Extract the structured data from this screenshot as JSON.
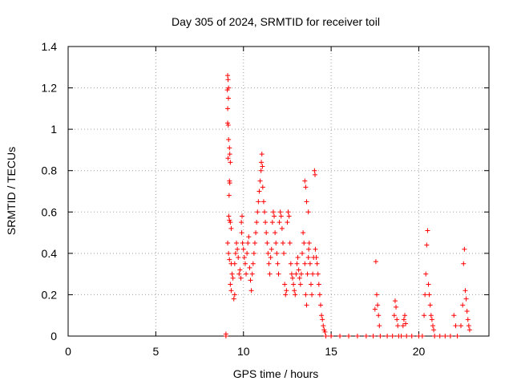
{
  "chart_data": {
    "type": "scatter",
    "title": "Day 305 of 2024, SRMTID for receiver toil",
    "xlabel": "GPS time / hours",
    "ylabel": "SRMTID / TECUs",
    "xlim": [
      0,
      24
    ],
    "ylim": [
      0,
      1.4
    ],
    "xticks": [
      0,
      5,
      10,
      15,
      20
    ],
    "xtick_labels": [
      "0",
      "5",
      "10",
      "15",
      "20"
    ],
    "yticks": [
      0,
      0.2,
      0.4,
      0.6,
      0.8,
      1.0,
      1.2,
      1.4
    ],
    "ytick_labels": [
      "0",
      "0.2",
      "0.4",
      "0.6",
      "0.8",
      "1",
      "1.2",
      "1.4"
    ],
    "grid": true,
    "marker": "+",
    "color": "#ff0000",
    "series": [
      {
        "name": "SRMTID",
        "points": [
          [
            9.0,
            0.0
          ],
          [
            9.0,
            0.01
          ],
          [
            9.1,
            1.26
          ],
          [
            9.12,
            1.24
          ],
          [
            9.15,
            1.2
          ],
          [
            9.08,
            1.19
          ],
          [
            9.14,
            1.15
          ],
          [
            9.1,
            1.1
          ],
          [
            9.1,
            1.03
          ],
          [
            9.13,
            1.02
          ],
          [
            9.15,
            0.95
          ],
          [
            9.2,
            0.91
          ],
          [
            9.22,
            0.88
          ],
          [
            9.12,
            0.86
          ],
          [
            9.25,
            0.84
          ],
          [
            9.2,
            0.75
          ],
          [
            9.22,
            0.74
          ],
          [
            9.18,
            0.68
          ],
          [
            9.16,
            0.58
          ],
          [
            9.2,
            0.56
          ],
          [
            9.25,
            0.55
          ],
          [
            9.3,
            0.52
          ],
          [
            9.1,
            0.45
          ],
          [
            9.15,
            0.4
          ],
          [
            9.2,
            0.37
          ],
          [
            9.3,
            0.35
          ],
          [
            9.35,
            0.3
          ],
          [
            9.4,
            0.28
          ],
          [
            9.25,
            0.25
          ],
          [
            9.3,
            0.22
          ],
          [
            9.5,
            0.2
          ],
          [
            9.45,
            0.18
          ],
          [
            9.5,
            0.35
          ],
          [
            9.55,
            0.4
          ],
          [
            9.6,
            0.45
          ],
          [
            9.65,
            0.42
          ],
          [
            9.7,
            0.38
          ],
          [
            9.75,
            0.3
          ],
          [
            9.8,
            0.32
          ],
          [
            9.85,
            0.28
          ],
          [
            9.9,
            0.5
          ],
          [
            9.88,
            0.55
          ],
          [
            9.92,
            0.58
          ],
          [
            9.95,
            0.45
          ],
          [
            10.0,
            0.42
          ],
          [
            10.05,
            0.38
          ],
          [
            10.1,
            0.35
          ],
          [
            10.15,
            0.3
          ],
          [
            10.2,
            0.4
          ],
          [
            10.25,
            0.45
          ],
          [
            10.3,
            0.48
          ],
          [
            10.35,
            0.33
          ],
          [
            10.4,
            0.27
          ],
          [
            10.45,
            0.22
          ],
          [
            10.5,
            0.3
          ],
          [
            10.55,
            0.35
          ],
          [
            10.6,
            0.4
          ],
          [
            10.65,
            0.45
          ],
          [
            10.7,
            0.5
          ],
          [
            10.75,
            0.55
          ],
          [
            10.8,
            0.6
          ],
          [
            10.85,
            0.65
          ],
          [
            10.9,
            0.7
          ],
          [
            10.95,
            0.75
          ],
          [
            11.0,
            0.8
          ],
          [
            11.02,
            0.84
          ],
          [
            11.05,
            0.88
          ],
          [
            11.08,
            0.82
          ],
          [
            11.1,
            0.72
          ],
          [
            11.15,
            0.65
          ],
          [
            11.2,
            0.6
          ],
          [
            11.25,
            0.55
          ],
          [
            11.3,
            0.5
          ],
          [
            11.35,
            0.45
          ],
          [
            11.4,
            0.4
          ],
          [
            11.45,
            0.35
          ],
          [
            11.5,
            0.3
          ],
          [
            11.55,
            0.38
          ],
          [
            11.6,
            0.42
          ],
          [
            11.65,
            0.55
          ],
          [
            11.7,
            0.6
          ],
          [
            11.75,
            0.58
          ],
          [
            11.8,
            0.5
          ],
          [
            11.85,
            0.45
          ],
          [
            11.9,
            0.4
          ],
          [
            11.95,
            0.35
          ],
          [
            12.0,
            0.3
          ],
          [
            12.05,
            0.55
          ],
          [
            12.1,
            0.6
          ],
          [
            12.15,
            0.58
          ],
          [
            12.2,
            0.52
          ],
          [
            12.25,
            0.45
          ],
          [
            12.3,
            0.4
          ],
          [
            12.35,
            0.25
          ],
          [
            12.4,
            0.2
          ],
          [
            12.45,
            0.22
          ],
          [
            12.5,
            0.55
          ],
          [
            12.55,
            0.6
          ],
          [
            12.6,
            0.58
          ],
          [
            12.65,
            0.45
          ],
          [
            12.7,
            0.35
          ],
          [
            12.75,
            0.3
          ],
          [
            12.8,
            0.28
          ],
          [
            12.85,
            0.25
          ],
          [
            12.9,
            0.22
          ],
          [
            12.95,
            0.2
          ],
          [
            13.0,
            0.3
          ],
          [
            13.05,
            0.35
          ],
          [
            13.1,
            0.38
          ],
          [
            13.15,
            0.32
          ],
          [
            13.2,
            0.28
          ],
          [
            13.25,
            0.25
          ],
          [
            13.3,
            0.3
          ],
          [
            13.35,
            0.4
          ],
          [
            13.4,
            0.5
          ],
          [
            13.45,
            0.45
          ],
          [
            13.5,
            0.35
          ],
          [
            13.55,
            0.2
          ],
          [
            13.6,
            0.15
          ],
          [
            13.65,
            0.3
          ],
          [
            13.7,
            0.38
          ],
          [
            13.72,
            0.42
          ],
          [
            13.5,
            0.75
          ],
          [
            13.55,
            0.72
          ],
          [
            13.6,
            0.65
          ],
          [
            13.7,
            0.6
          ],
          [
            13.75,
            0.45
          ],
          [
            13.8,
            0.35
          ],
          [
            13.85,
            0.25
          ],
          [
            13.9,
            0.2
          ],
          [
            13.95,
            0.3
          ],
          [
            14.0,
            0.38
          ],
          [
            14.05,
            0.8
          ],
          [
            14.08,
            0.78
          ],
          [
            14.1,
            0.42
          ],
          [
            14.15,
            0.38
          ],
          [
            14.2,
            0.35
          ],
          [
            14.25,
            0.3
          ],
          [
            14.3,
            0.25
          ],
          [
            14.35,
            0.2
          ],
          [
            14.4,
            0.15
          ],
          [
            14.45,
            0.1
          ],
          [
            14.5,
            0.08
          ],
          [
            14.55,
            0.05
          ],
          [
            14.6,
            0.03
          ],
          [
            14.65,
            0.02
          ],
          [
            14.7,
            0.0
          ],
          [
            15.0,
            0.0
          ],
          [
            15.5,
            0.0
          ],
          [
            16.0,
            0.0
          ],
          [
            16.5,
            0.0
          ],
          [
            17.0,
            0.0
          ],
          [
            17.4,
            0.0
          ],
          [
            17.5,
            0.13
          ],
          [
            17.55,
            0.36
          ],
          [
            17.6,
            0.2
          ],
          [
            17.65,
            0.15
          ],
          [
            17.7,
            0.1
          ],
          [
            17.75,
            0.05
          ],
          [
            17.8,
            0.0
          ],
          [
            18.2,
            0.0
          ],
          [
            18.5,
            0.0
          ],
          [
            18.6,
            0.1
          ],
          [
            18.65,
            0.17
          ],
          [
            18.7,
            0.14
          ],
          [
            18.75,
            0.08
          ],
          [
            18.8,
            0.05
          ],
          [
            18.85,
            0.0
          ],
          [
            19.0,
            0.0
          ],
          [
            19.1,
            0.05
          ],
          [
            19.15,
            0.08
          ],
          [
            19.2,
            0.1
          ],
          [
            19.25,
            0.06
          ],
          [
            19.3,
            0.0
          ],
          [
            19.6,
            0.0
          ],
          [
            20.0,
            0.0
          ],
          [
            20.2,
            0.0
          ],
          [
            20.3,
            0.1
          ],
          [
            20.35,
            0.2
          ],
          [
            20.4,
            0.3
          ],
          [
            20.45,
            0.44
          ],
          [
            20.5,
            0.51
          ],
          [
            20.55,
            0.25
          ],
          [
            20.6,
            0.2
          ],
          [
            20.65,
            0.15
          ],
          [
            20.7,
            0.1
          ],
          [
            20.75,
            0.08
          ],
          [
            20.8,
            0.05
          ],
          [
            20.85,
            0.03
          ],
          [
            20.9,
            0.0
          ],
          [
            21.2,
            0.0
          ],
          [
            21.5,
            0.0
          ],
          [
            21.8,
            0.0
          ],
          [
            22.0,
            0.1
          ],
          [
            22.1,
            0.05
          ],
          [
            22.2,
            0.0
          ],
          [
            22.4,
            0.05
          ],
          [
            22.5,
            0.15
          ],
          [
            22.55,
            0.35
          ],
          [
            22.6,
            0.42
          ],
          [
            22.65,
            0.22
          ],
          [
            22.7,
            0.18
          ],
          [
            22.75,
            0.12
          ],
          [
            22.8,
            0.08
          ],
          [
            22.85,
            0.05
          ],
          [
            22.9,
            0.03
          ]
        ]
      }
    ]
  }
}
